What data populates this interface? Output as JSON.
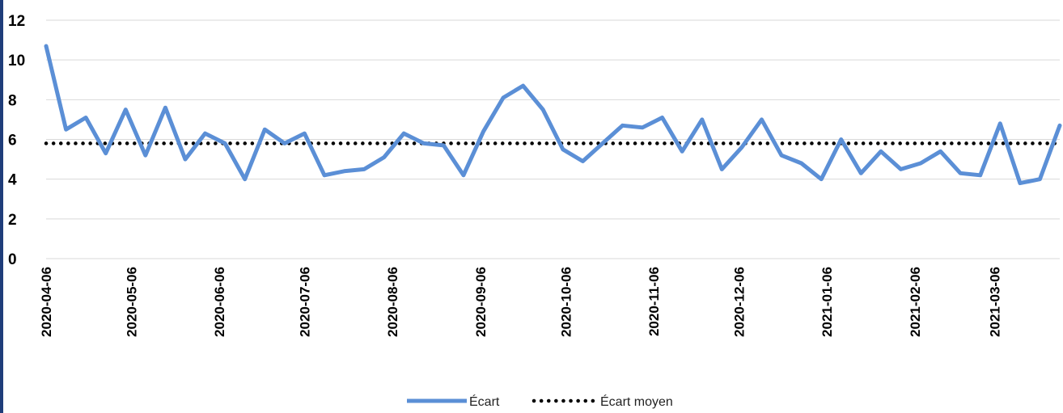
{
  "chart_data": {
    "type": "line",
    "x_tick_labels": [
      "2020-04-06",
      "2020-05-06",
      "2020-06-06",
      "2020-07-06",
      "2020-08-06",
      "2020-09-06",
      "2020-10-06",
      "2020-11-06",
      "2020-12-06",
      "2021-01-06",
      "2021-02-06",
      "2021-03-06"
    ],
    "y_tick_labels": [
      "0",
      "2",
      "4",
      "6",
      "8",
      "10",
      "12"
    ],
    "ylim": [
      0,
      12
    ],
    "grid": "horizontal",
    "legend_position": "bottom",
    "series": [
      {
        "name": "Écart",
        "style": "solid",
        "color": "#5b8fd6",
        "x": [
          "2020-04-06",
          "2020-04-13",
          "2020-04-20",
          "2020-04-27",
          "2020-05-04",
          "2020-05-11",
          "2020-05-18",
          "2020-05-25",
          "2020-06-01",
          "2020-06-08",
          "2020-06-15",
          "2020-06-22",
          "2020-06-29",
          "2020-07-06",
          "2020-07-13",
          "2020-07-20",
          "2020-07-27",
          "2020-08-03",
          "2020-08-10",
          "2020-08-17",
          "2020-08-24",
          "2020-08-31",
          "2020-09-07",
          "2020-09-14",
          "2020-09-21",
          "2020-09-28",
          "2020-10-05",
          "2020-10-12",
          "2020-10-19",
          "2020-10-26",
          "2020-11-02",
          "2020-11-09",
          "2020-11-16",
          "2020-11-23",
          "2020-11-30",
          "2020-12-07",
          "2020-12-14",
          "2020-12-21",
          "2020-12-28",
          "2021-01-04",
          "2021-01-11",
          "2021-01-18",
          "2021-01-25",
          "2021-02-01",
          "2021-02-08",
          "2021-02-15",
          "2021-02-22",
          "2021-03-01",
          "2021-03-08",
          "2021-03-15",
          "2021-03-22",
          "2021-03-29"
        ],
        "values": [
          10.7,
          6.5,
          7.1,
          5.3,
          7.5,
          5.2,
          7.6,
          5.0,
          6.3,
          5.8,
          4.0,
          6.5,
          5.8,
          6.3,
          4.2,
          4.4,
          4.5,
          5.1,
          6.3,
          5.8,
          5.7,
          4.2,
          6.4,
          8.1,
          8.7,
          7.5,
          5.5,
          4.9,
          5.8,
          6.7,
          6.6,
          7.1,
          5.4,
          7.0,
          4.5,
          5.6,
          7.0,
          5.2,
          4.8,
          4.0,
          6.0,
          4.3,
          5.4,
          4.5,
          4.8,
          5.4,
          4.3,
          4.2,
          6.8,
          3.8,
          4.0,
          6.7
        ]
      },
      {
        "name": "Écart moyen",
        "style": "dotted",
        "color": "#000000",
        "value": 5.8
      }
    ]
  }
}
